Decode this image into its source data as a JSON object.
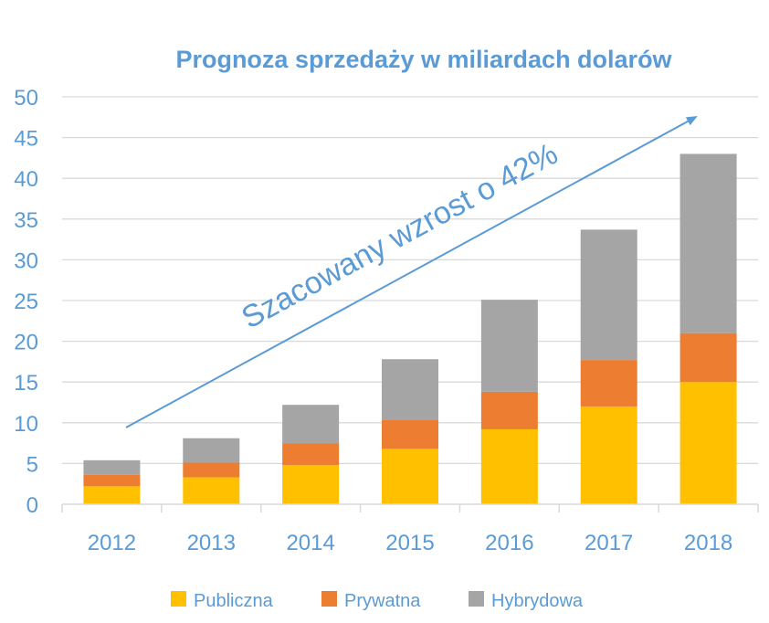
{
  "chart_data": {
    "type": "bar",
    "stacked": true,
    "title": "Prognoza sprzedaży w miliardach dolarów",
    "xlabel": "",
    "ylabel": "",
    "categories": [
      "2012",
      "2013",
      "2014",
      "2015",
      "2016",
      "2017",
      "2018"
    ],
    "series": [
      {
        "name": "Publiczna",
        "color": "#FFC000",
        "values": [
          2.2,
          3.3,
          4.8,
          6.8,
          9.2,
          12.0,
          15.0
        ]
      },
      {
        "name": "Prywatna",
        "color": "#ED7D31",
        "values": [
          1.4,
          1.8,
          2.7,
          3.6,
          4.6,
          5.7,
          6.0
        ]
      },
      {
        "name": "Hybrydowa",
        "color": "#A5A5A5",
        "values": [
          1.8,
          3.0,
          4.7,
          7.4,
          11.3,
          16.0,
          22.0
        ]
      }
    ],
    "ylim": [
      0,
      50
    ],
    "yticks": [
      0,
      5,
      10,
      15,
      20,
      25,
      30,
      35,
      40,
      45,
      50
    ],
    "grid": true,
    "legend": "bottom",
    "annotation": {
      "text": "Szacowany wzrost o 42%",
      "type": "arrow",
      "color": "#5B9BD5"
    },
    "text_color": "#5B9BD5",
    "grid_color": "#D9D9D9"
  }
}
